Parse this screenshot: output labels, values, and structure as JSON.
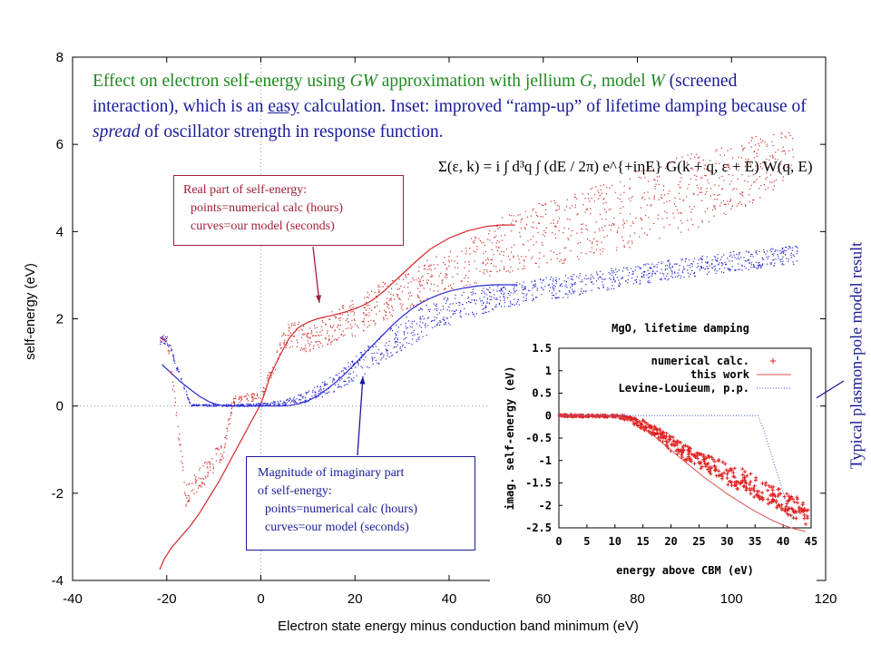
{
  "annotation": {
    "title_parts": [
      "Effect on electron self-energy using ",
      "GW",
      " approximation with jellium ",
      "G",
      ", model ",
      "W",
      " (screened interaction), which is an ",
      "easy",
      " calculation.  Inset: improved “ramp-up” of lifetime damping because of ",
      "spread",
      " of oscillator strength in response function."
    ],
    "equation": "Σ(ε, k) = i ∫ d³q ∫ (dE / 2π) e^{+iηE} G(k + q, ε + E) W(q, E)",
    "real_box": [
      "Real part of self-energy:",
      "points=numerical calc (hours)",
      "curves=our model (seconds)"
    ],
    "imag_box": [
      "Magnitude of imaginary part",
      "of self-energy:",
      "points=numerical calc (hours)",
      "curves=our model (seconds)"
    ],
    "side_note": "Typical plasmon-pole model result"
  },
  "colors": {
    "real": "#d42a2a",
    "imag": "#2a2ad4",
    "text_blue": "#1a1a99",
    "text_green": "#218a21",
    "box_real": "#a0203a"
  },
  "chart_data": [
    {
      "type": "scatter",
      "xlabel": "Electron state energy minus conduction band minimum (eV)",
      "ylabel": "self-energy (eV)",
      "xlim": [
        -40,
        120
      ],
      "ylim": [
        -4,
        8
      ],
      "xticks": [
        -40,
        -20,
        0,
        20,
        40,
        60,
        80,
        100,
        120
      ],
      "yticks": [
        -4,
        -2,
        0,
        2,
        4,
        6,
        8
      ],
      "grid": false,
      "series": [
        {
          "kind": "line",
          "role": "real-model",
          "x": [
            -21.5,
            -20.5,
            -19,
            -17,
            -15,
            -13,
            -11,
            -9,
            -7,
            -5,
            -3,
            -2,
            -1,
            0,
            1,
            2,
            4,
            6,
            8,
            10,
            12,
            14,
            16,
            18,
            20,
            22,
            24,
            26,
            28,
            30,
            33,
            36,
            40,
            44,
            48,
            51,
            54
          ],
          "y": [
            -3.75,
            -3.5,
            -3.25,
            -3.0,
            -2.75,
            -2.45,
            -2.1,
            -1.75,
            -1.35,
            -0.95,
            -0.55,
            -0.35,
            -0.15,
            0.05,
            0.35,
            0.7,
            1.15,
            1.55,
            1.8,
            1.92,
            2.0,
            2.05,
            2.1,
            2.16,
            2.23,
            2.32,
            2.45,
            2.62,
            2.82,
            3.02,
            3.32,
            3.6,
            3.85,
            4.02,
            4.12,
            4.15,
            4.15
          ]
        },
        {
          "kind": "line",
          "role": "imag-model",
          "x": [
            -21,
            -19,
            -17,
            -15,
            -13,
            -11,
            -9,
            -7,
            -5,
            -2,
            0,
            2,
            4,
            6,
            8,
            10,
            12,
            14,
            16,
            18,
            20,
            22,
            24,
            26,
            28,
            30,
            32,
            34,
            36,
            38,
            40,
            42,
            44,
            46,
            48,
            50,
            52,
            54.5
          ],
          "y": [
            0.95,
            0.75,
            0.55,
            0.38,
            0.22,
            0.1,
            0.02,
            0,
            0,
            0,
            0,
            0,
            0,
            0.01,
            0.05,
            0.12,
            0.23,
            0.38,
            0.55,
            0.75,
            0.97,
            1.2,
            1.42,
            1.64,
            1.86,
            2.05,
            2.22,
            2.36,
            2.47,
            2.56,
            2.63,
            2.68,
            2.72,
            2.75,
            2.77,
            2.78,
            2.78,
            2.78
          ]
        },
        {
          "kind": "points",
          "role": "real-numerical",
          "density": 1,
          "band_x": [
            -21.5,
            -20,
            -16,
            -13,
            -10,
            -8,
            -6,
            -4,
            0,
            5,
            7,
            10,
            15,
            20,
            25,
            30,
            40,
            50,
            60,
            70,
            80,
            90,
            100,
            105,
            110,
            113
          ],
          "band_lo": [
            1.48,
            1.45,
            -2.3,
            -1.9,
            -1.55,
            -1.2,
            0.05,
            0.1,
            0.1,
            1.35,
            1.3,
            1.25,
            1.4,
            1.6,
            1.9,
            2.2,
            2.6,
            3.0,
            3.2,
            3.4,
            3.7,
            4.0,
            4.4,
            4.7,
            4.9,
            5.2
          ],
          "band_hi": [
            1.62,
            1.65,
            -1.8,
            -1.4,
            -1.0,
            -0.8,
            0.25,
            0.3,
            0.3,
            1.8,
            2.05,
            1.8,
            2.2,
            2.5,
            2.8,
            3.1,
            3.6,
            4.3,
            4.7,
            5.0,
            5.4,
            5.8,
            6.0,
            6.2,
            6.3,
            6.4
          ]
        },
        {
          "kind": "points",
          "role": "imag-numerical",
          "density": 1,
          "band_x": [
            -21.5,
            -20,
            -15,
            -10,
            -5,
            0,
            5,
            10,
            15,
            20,
            25,
            30,
            35,
            40,
            45,
            50,
            60,
            70,
            80,
            90,
            100,
            110,
            114
          ],
          "band_lo": [
            1.4,
            1.42,
            0,
            0,
            0,
            0,
            0.02,
            0.1,
            0.3,
            0.6,
            0.95,
            1.3,
            1.6,
            1.85,
            2.05,
            2.2,
            2.4,
            2.6,
            2.8,
            2.95,
            3.1,
            3.2,
            3.25
          ],
          "band_hi": [
            1.6,
            1.62,
            0.05,
            0.05,
            0.05,
            0.08,
            0.15,
            0.35,
            0.7,
            1.15,
            1.6,
            2.0,
            2.35,
            2.55,
            2.7,
            2.8,
            2.95,
            3.1,
            3.25,
            3.4,
            3.55,
            3.65,
            3.7
          ]
        }
      ]
    },
    {
      "type": "scatter",
      "title": "MgO, lifetime damping",
      "xlabel": "energy above CBM (eV)",
      "ylabel": "imag. self-energy (eV)",
      "xlim": [
        0,
        45
      ],
      "ylim": [
        -2.5,
        1.5
      ],
      "xticks": [
        0,
        5,
        10,
        15,
        20,
        25,
        30,
        35,
        40,
        45
      ],
      "yticks": [
        -2.5,
        -2,
        -1.5,
        -1,
        -0.5,
        0,
        0.5,
        1,
        1.5
      ],
      "yticklabels": [
        "-2.5",
        "-2",
        "-1.5",
        "-1",
        "-0.5",
        "0",
        "0.5",
        "1",
        "1.5"
      ],
      "legend_position": "top-right",
      "series": [
        {
          "name": "numerical calc.",
          "kind": "points",
          "band_x": [
            0,
            10,
            12,
            15,
            18,
            20,
            22,
            25,
            28,
            30,
            33,
            35,
            38,
            40,
            42,
            44.5
          ],
          "band_lo": [
            -0.02,
            -0.03,
            -0.1,
            -0.3,
            -0.55,
            -0.8,
            -0.95,
            -1.2,
            -1.35,
            -1.55,
            -1.7,
            -1.85,
            -2.0,
            -2.15,
            -2.3,
            -2.45
          ],
          "band_hi": [
            0.02,
            0.01,
            0.0,
            -0.1,
            -0.3,
            -0.45,
            -0.6,
            -0.8,
            -0.95,
            -1.05,
            -1.2,
            -1.35,
            -1.5,
            -1.65,
            -1.8,
            -1.9
          ]
        },
        {
          "name": "this work",
          "kind": "line",
          "x": [
            0,
            9,
            10,
            12,
            14,
            16,
            18,
            20,
            22,
            24,
            26,
            28,
            30,
            32,
            34,
            36,
            38,
            40,
            42,
            44
          ],
          "y": [
            0,
            0,
            -0.01,
            -0.06,
            -0.18,
            -0.36,
            -0.56,
            -0.77,
            -0.98,
            -1.18,
            -1.38,
            -1.56,
            -1.74,
            -1.9,
            -2.06,
            -2.2,
            -2.33,
            -2.44,
            -2.52,
            -2.58
          ]
        },
        {
          "name": "Levine-Louieum, p.p.",
          "kind": "line",
          "x": [
            0,
            35.5,
            36.5,
            37.5,
            38.5,
            39.5,
            40.5,
            41.5
          ],
          "y": [
            0,
            0,
            -0.3,
            -0.7,
            -1.1,
            -1.5,
            -1.9,
            -2.3
          ]
        }
      ]
    }
  ]
}
